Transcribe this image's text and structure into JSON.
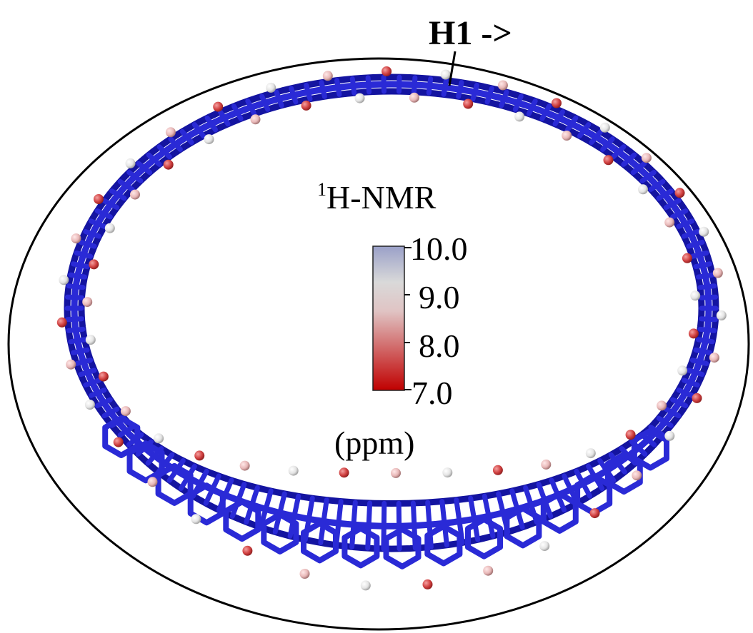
{
  "figure": {
    "annotation_label": "H1 ->",
    "colorbar": {
      "title_superscript": "1",
      "title": "H-NMR",
      "unit": "(ppm)",
      "ticks": [
        "10.0",
        "9.0",
        "8.0",
        "7.0"
      ],
      "range": [
        7.0,
        10.0
      ],
      "colors": {
        "min": "#c00000",
        "mid": "#d9d9d9",
        "max": "#9aa0c8"
      }
    },
    "colors": {
      "carbon": "#2a2ad6",
      "carbon_dark": "#1414a0",
      "oxygen": "#d04040",
      "hydrogen_light": "#e8e8e8",
      "outline": "#000000"
    }
  }
}
